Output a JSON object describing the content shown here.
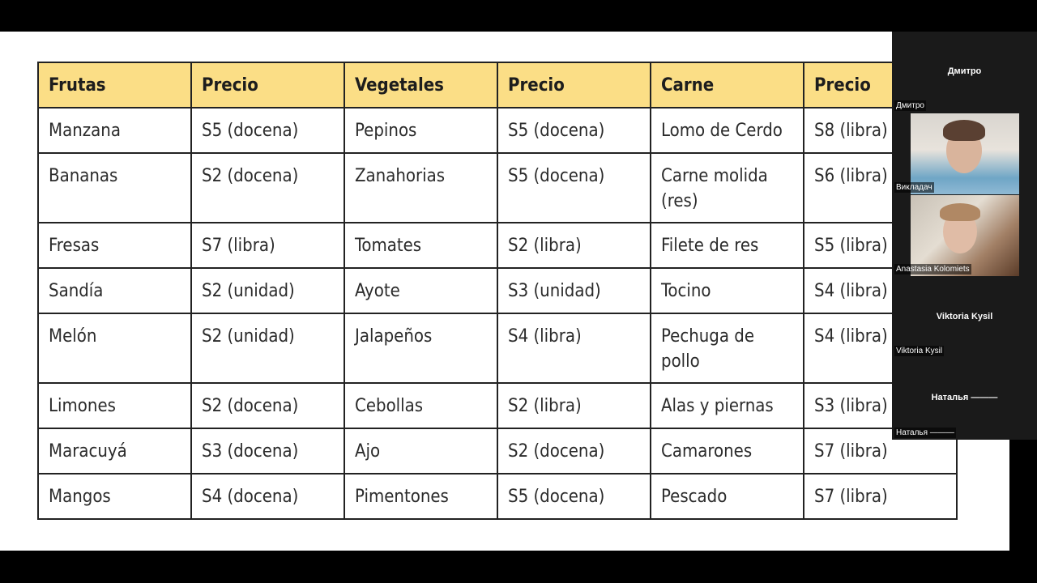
{
  "table": {
    "headers": [
      "Frutas",
      "Precio",
      "Vegetales",
      "Precio",
      "Carne",
      "Precio"
    ],
    "rows": [
      [
        "Manzana",
        "S5 (docena)",
        "Pepinos",
        "S5 (docena)",
        "Lomo de Cerdo",
        "S8 (libra)"
      ],
      [
        "Bananas",
        "S2 (docena)",
        "Zanahorias",
        "S5 (docena)",
        "Carne molida (res)",
        "S6 (libra)"
      ],
      [
        "Fresas",
        "S7 (libra)",
        "Tomates",
        "S2 (libra)",
        "Filete de res",
        "S5 (libra)"
      ],
      [
        "Sandía",
        "S2 (unidad)",
        "Ayote",
        "S3 (unidad)",
        "Tocino",
        "S4 (libra)"
      ],
      [
        "Melón",
        "S2 (unidad)",
        "Jalapeños",
        "S4 (libra)",
        "Pechuga de pollo",
        "S4 (libra)"
      ],
      [
        "Limones",
        "S2 (docena)",
        "Cebollas",
        "S2 (libra)",
        "Alas y piernas",
        "S3 (libra)"
      ],
      [
        "Maracuyá",
        "S3 (docena)",
        "Ajo",
        "S2 (docena)",
        "Camarones",
        "S7 (libra)"
      ],
      [
        "Mangos",
        "S4 (docena)",
        "Pimentones",
        "S5 (docena)",
        "Pescado",
        "S7 (libra)"
      ]
    ]
  },
  "participants": [
    {
      "title": "Дмитро",
      "label": "Дмитро",
      "video": false
    },
    {
      "title": "",
      "label": "Викладач",
      "video": true
    },
    {
      "title": "",
      "label": "Anastasia Kolomiets",
      "video": true
    },
    {
      "title": "Viktoria Kysil",
      "label": "Viktoria Kysil",
      "video": false
    },
    {
      "title": "Наталья ———",
      "label": "Наталья ———",
      "video": false
    }
  ],
  "colors": {
    "header_fill": "#fbde86",
    "panel_bg": "#1a1a1a",
    "frame_bg": "#000000"
  }
}
